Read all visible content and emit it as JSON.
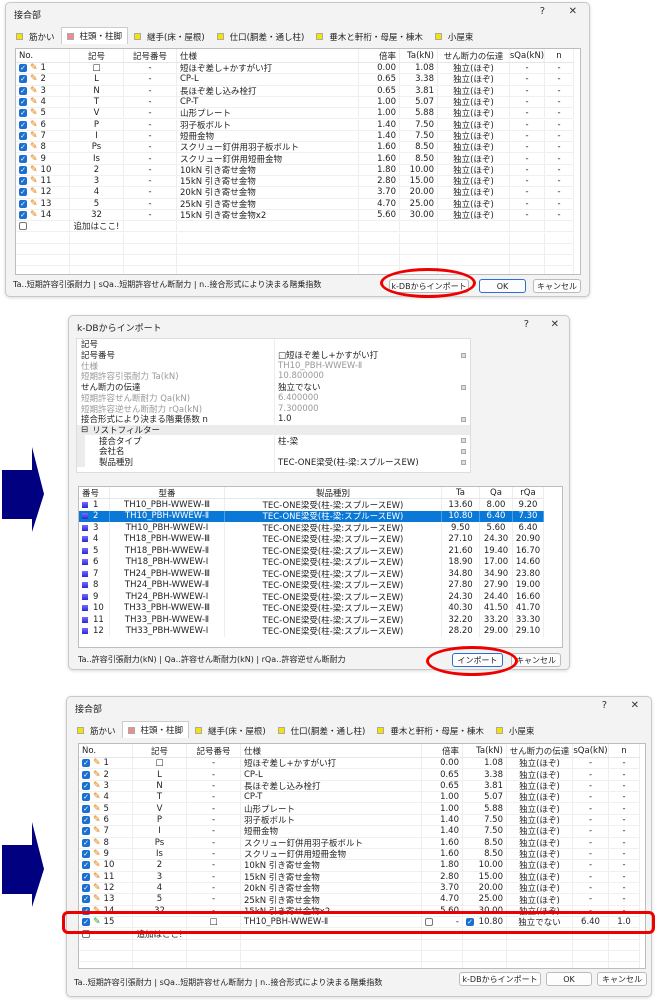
{
  "joint_dialog": {
    "title": "接合部",
    "help": "?",
    "close": "✕",
    "tabs": [
      {
        "label": "筋かい",
        "color": "#f5e400"
      },
      {
        "label": "柱頭・柱脚",
        "color": "#f08c8c"
      },
      {
        "label": "継手(床・屋根)",
        "color": "#f5e400"
      },
      {
        "label": "仕口(胴差・通し柱)",
        "color": "#f5e400"
      },
      {
        "label": "垂木と軒桁・母屋・棟木",
        "color": "#f5e400"
      },
      {
        "label": "小屋束",
        "color": "#f5e400"
      }
    ],
    "selected_tab": "柱頭・柱脚",
    "columns": [
      "No.",
      "記号",
      "記号番号",
      "仕様",
      "倍率",
      "Ta(kN)",
      "せん断力の伝達",
      "sQa(kN)",
      "n"
    ],
    "add_row": "追加はここ!",
    "legend": "Ta‥短期許容引張耐力 | sQa‥短期許容せん断耐力 | n‥接合形式により決まる階乗指数",
    "buttons": {
      "import": "k-DBからインポート",
      "ok": "OK",
      "cancel": "キャンセル"
    }
  },
  "joint_rows": [
    {
      "no": "1",
      "kigou": "□",
      "kigou_no": "-",
      "spec": "短ほぞ差し+かすがい打",
      "bairitsu": "0.00",
      "ta": "1.08",
      "shear": "独立(ほぞ)",
      "sqa": "-",
      "n": "-"
    },
    {
      "no": "2",
      "kigou": "L",
      "kigou_no": "-",
      "spec": "CP-L",
      "bairitsu": "0.65",
      "ta": "3.38",
      "shear": "独立(ほぞ)",
      "sqa": "-",
      "n": "-"
    },
    {
      "no": "3",
      "kigou": "N",
      "kigou_no": "-",
      "spec": "長ほぞ差し込み栓打",
      "bairitsu": "0.65",
      "ta": "3.81",
      "shear": "独立(ほぞ)",
      "sqa": "-",
      "n": "-"
    },
    {
      "no": "4",
      "kigou": "T",
      "kigou_no": "-",
      "spec": "CP-T",
      "bairitsu": "1.00",
      "ta": "5.07",
      "shear": "独立(ほぞ)",
      "sqa": "-",
      "n": "-"
    },
    {
      "no": "5",
      "kigou": "V",
      "kigou_no": "-",
      "spec": "山形プレート",
      "bairitsu": "1.00",
      "ta": "5.88",
      "shear": "独立(ほぞ)",
      "sqa": "-",
      "n": "-"
    },
    {
      "no": "6",
      "kigou": "P",
      "kigou_no": "-",
      "spec": "羽子板ボルト",
      "bairitsu": "1.40",
      "ta": "7.50",
      "shear": "独立(ほぞ)",
      "sqa": "-",
      "n": "-"
    },
    {
      "no": "7",
      "kigou": "I",
      "kigou_no": "-",
      "spec": "短冊金物",
      "bairitsu": "1.40",
      "ta": "7.50",
      "shear": "独立(ほぞ)",
      "sqa": "-",
      "n": "-"
    },
    {
      "no": "8",
      "kigou": "Ps",
      "kigou_no": "-",
      "spec": "スクリュー釘併用羽子板ボルト",
      "bairitsu": "1.60",
      "ta": "8.50",
      "shear": "独立(ほぞ)",
      "sqa": "-",
      "n": "-"
    },
    {
      "no": "9",
      "kigou": "Is",
      "kigou_no": "-",
      "spec": "スクリュー釘併用短冊金物",
      "bairitsu": "1.60",
      "ta": "8.50",
      "shear": "独立(ほぞ)",
      "sqa": "-",
      "n": "-"
    },
    {
      "no": "10",
      "kigou": "2",
      "kigou_no": "-",
      "spec": "10kN 引き寄せ金物",
      "bairitsu": "1.80",
      "ta": "10.00",
      "shear": "独立(ほぞ)",
      "sqa": "-",
      "n": "-"
    },
    {
      "no": "11",
      "kigou": "3",
      "kigou_no": "-",
      "spec": "15kN 引き寄せ金物",
      "bairitsu": "2.80",
      "ta": "15.00",
      "shear": "独立(ほぞ)",
      "sqa": "-",
      "n": "-"
    },
    {
      "no": "12",
      "kigou": "4",
      "kigou_no": "-",
      "spec": "20kN 引き寄せ金物",
      "bairitsu": "3.70",
      "ta": "20.00",
      "shear": "独立(ほぞ)",
      "sqa": "-",
      "n": "-"
    },
    {
      "no": "13",
      "kigou": "5",
      "kigou_no": "-",
      "spec": "25kN 引き寄せ金物",
      "bairitsu": "4.70",
      "ta": "25.00",
      "shear": "独立(ほぞ)",
      "sqa": "-",
      "n": "-"
    },
    {
      "no": "14",
      "kigou": "32",
      "kigou_no": "-",
      "spec": "15kN 引き寄せ金物x2",
      "bairitsu": "5.60",
      "ta": "30.00",
      "shear": "独立(ほぞ)",
      "sqa": "-",
      "n": "-"
    }
  ],
  "new_row": {
    "no": "15",
    "kigou": "",
    "kigou_no": "□",
    "spec": "TH10_PBH-WWEW-Ⅱ",
    "bairitsu": "-",
    "ta": "10.80",
    "shear": "独立でない",
    "sqa": "6.40",
    "n": "1.0"
  },
  "import_dialog": {
    "title": "k-DBからインポート",
    "help": "?",
    "close": "✕",
    "properties": [
      {
        "label": "記号",
        "value": "",
        "dropdown": false,
        "disabled": false
      },
      {
        "label": "記号番号",
        "value": "□短ほぞ差し+かすがい打",
        "dropdown": true,
        "disabled": false
      },
      {
        "label": "仕様",
        "value": "TH10_PBH-WWEW-Ⅱ",
        "dropdown": false,
        "disabled": true
      },
      {
        "label": "短期許容引張耐力 Ta(kN)",
        "value": "10.800000",
        "dropdown": false,
        "disabled": true
      },
      {
        "label": "せん断力の伝達",
        "value": "独立でない",
        "dropdown": true,
        "disabled": false
      },
      {
        "label": "短期許容せん断耐力 Qa(kN)",
        "value": "6.400000",
        "dropdown": false,
        "disabled": true
      },
      {
        "label": "短期許容逆せん断耐力 rQa(kN)",
        "value": "7.300000",
        "dropdown": false,
        "disabled": true
      },
      {
        "label": "接合形式により決まる階乗係数 n",
        "value": "1.0",
        "dropdown": true,
        "disabled": false
      }
    ],
    "filter_group": "リストフィルター",
    "filters": [
      {
        "label": "接合タイプ",
        "value": "柱-梁"
      },
      {
        "label": "会社名",
        "value": ""
      },
      {
        "label": "製品種別",
        "value": "TEC-ONE梁受(柱-梁:スプルースEW)"
      }
    ],
    "columns": [
      "番号",
      "型番",
      "製品種別",
      "Ta",
      "Qa",
      "rQa"
    ],
    "selected_index": 2,
    "rows": [
      {
        "no": "1",
        "model": "TH10_PBH-WWEW-Ⅲ",
        "type": "TEC-ONE梁受(柱-梁:スプルースEW)",
        "ta": "13.60",
        "qa": "8.00",
        "rqa": "9.20"
      },
      {
        "no": "2",
        "model": "TH10_PBH-WWEW-Ⅱ",
        "type": "TEC-ONE梁受(柱-梁:スプルースEW)",
        "ta": "10.80",
        "qa": "6.40",
        "rqa": "7.30"
      },
      {
        "no": "3",
        "model": "TH10_PBH-WWEW-Ⅰ",
        "type": "TEC-ONE梁受(柱-梁:スプルースEW)",
        "ta": "9.50",
        "qa": "5.60",
        "rqa": "6.40"
      },
      {
        "no": "4",
        "model": "TH18_PBH-WWEW-Ⅲ",
        "type": "TEC-ONE梁受(柱-梁:スプルースEW)",
        "ta": "27.10",
        "qa": "24.30",
        "rqa": "20.90"
      },
      {
        "no": "5",
        "model": "TH18_PBH-WWEW-Ⅱ",
        "type": "TEC-ONE梁受(柱-梁:スプルースEW)",
        "ta": "21.60",
        "qa": "19.40",
        "rqa": "16.70"
      },
      {
        "no": "6",
        "model": "TH18_PBH-WWEW-Ⅰ",
        "type": "TEC-ONE梁受(柱-梁:スプルースEW)",
        "ta": "18.90",
        "qa": "17.00",
        "rqa": "14.60"
      },
      {
        "no": "7",
        "model": "TH24_PBH-WWEW-Ⅲ",
        "type": "TEC-ONE梁受(柱-梁:スプルースEW)",
        "ta": "34.80",
        "qa": "34.90",
        "rqa": "23.80"
      },
      {
        "no": "8",
        "model": "TH24_PBH-WWEW-Ⅱ",
        "type": "TEC-ONE梁受(柱-梁:スプルースEW)",
        "ta": "27.80",
        "qa": "27.90",
        "rqa": "19.00"
      },
      {
        "no": "9",
        "model": "TH24_PBH-WWEW-Ⅰ",
        "type": "TEC-ONE梁受(柱-梁:スプルースEW)",
        "ta": "24.30",
        "qa": "24.40",
        "rqa": "16.60"
      },
      {
        "no": "10",
        "model": "TH33_PBH-WWEW-Ⅲ",
        "type": "TEC-ONE梁受(柱-梁:スプルースEW)",
        "ta": "40.30",
        "qa": "41.50",
        "rqa": "41.70"
      },
      {
        "no": "11",
        "model": "TH33_PBH-WWEW-Ⅱ",
        "type": "TEC-ONE梁受(柱-梁:スプルースEW)",
        "ta": "32.20",
        "qa": "33.20",
        "rqa": "33.30"
      },
      {
        "no": "12",
        "model": "TH33_PBH-WWEW-Ⅰ",
        "type": "TEC-ONE梁受(柱-梁:スプルースEW)",
        "ta": "28.20",
        "qa": "29.00",
        "rqa": "29.10"
      }
    ],
    "legend": "Ta‥許容引張耐力(kN) | Qa‥許容せん断耐力(kN) | rQa‥許容逆せん断耐力",
    "buttons": {
      "import": "インポート",
      "cancel": "キャンセル"
    }
  },
  "colors": {
    "highlight": "#e00000",
    "arrow": "#000080",
    "selection": "#0a78d7",
    "checkbox": "#1a6fd0"
  }
}
